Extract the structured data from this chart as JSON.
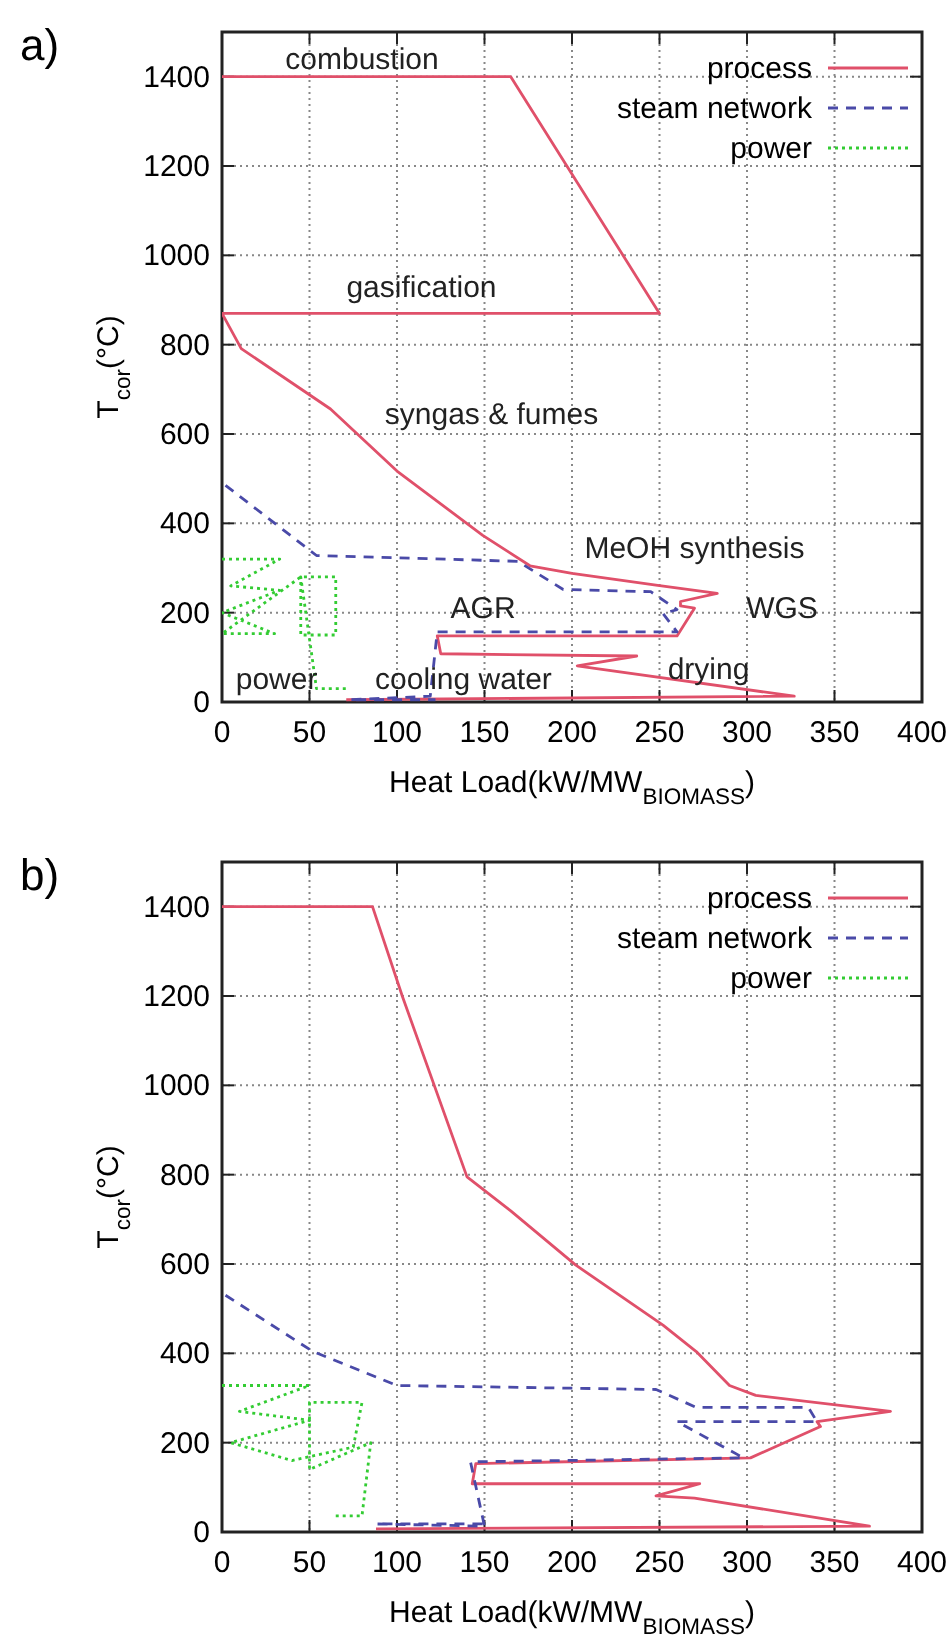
{
  "chart_data": [
    {
      "type": "line",
      "title": "a)",
      "xlabel": "Heat Load(kW/MW$_{BIOMASS}$)",
      "ylabel": "T$_{cor}$(°C)",
      "xlim": [
        0,
        400
      ],
      "ylim": [
        0,
        1500
      ],
      "xticks": [
        0,
        50,
        100,
        150,
        200,
        250,
        300,
        350,
        400
      ],
      "yticks": [
        0,
        200,
        400,
        600,
        800,
        1000,
        1200,
        1400
      ],
      "grid": true,
      "legend": "top right",
      "series": [
        {
          "name": "process",
          "color": "#e0506a",
          "line_style": "solid",
          "x": [
            0,
            165,
            250,
            0,
            11,
            62,
            100,
            149,
            176,
            200,
            249,
            283,
            262,
            262,
            270,
            260,
            123,
            125,
            237,
            203,
            212,
            327,
            71
          ],
          "values": [
            1400,
            1400,
            870,
            870,
            791,
            656,
            517,
            373,
            305,
            288,
            261,
            243,
            225,
            215,
            210,
            148,
            148,
            108,
            103,
            81,
            76,
            13,
            5
          ]
        },
        {
          "name": "steam network",
          "color": "#4a4aa8",
          "line_style": "dashed",
          "x": [
            2,
            54,
            169,
            195,
            245,
            260,
            252,
            260,
            123,
            119,
            73,
            122
          ],
          "values": [
            485,
            328,
            315,
            252,
            247,
            207,
            198,
            157,
            157,
            13,
            5,
            5
          ]
        },
        {
          "name": "power",
          "color": "#33cc33",
          "line_style": "dotted",
          "x": [
            0,
            33,
            5,
            33,
            0,
            30,
            0,
            45,
            65,
            65,
            45,
            45,
            54,
            71
          ],
          "values": [
            320,
            320,
            260,
            250,
            200,
            153,
            153,
            280,
            280,
            150,
            150,
            280,
            30,
            30
          ]
        }
      ],
      "annotations": [
        "combustion",
        "gasification",
        "syngas & fumes",
        "MeOH synthesis",
        "WGS",
        "AGR",
        "drying",
        "power",
        "cooling water"
      ]
    },
    {
      "type": "line",
      "title": "b)",
      "xlabel": "Heat Load(kW/MW$_{BIOMASS}$)",
      "ylabel": "T$_{cor}$(°C)",
      "xlim": [
        0,
        400
      ],
      "ylim": [
        0,
        1500
      ],
      "xticks": [
        0,
        50,
        100,
        150,
        200,
        250,
        300,
        350,
        400
      ],
      "yticks": [
        0,
        200,
        400,
        600,
        800,
        1000,
        1200,
        1400
      ],
      "grid": true,
      "legend": "top right",
      "series": [
        {
          "name": "process",
          "color": "#e0506a",
          "line_style": "solid",
          "x": [
            0,
            86,
            103,
            140,
            165,
            202,
            252,
            271,
            290,
            305,
            382,
            340,
            342,
            302,
            145,
            143,
            273,
            248,
            270,
            370,
            88
          ],
          "values": [
            1400,
            1400,
            1200,
            795,
            719,
            598,
            463,
            404,
            328,
            306,
            270,
            247,
            236,
            166,
            153,
            108,
            108,
            81,
            76,
            13,
            7
          ]
        },
        {
          "name": "steam network",
          "color": "#4a4aa8",
          "line_style": "dashed",
          "x": [
            2,
            52,
            100,
            248,
            271,
            335,
            340,
            260,
            298,
            142,
            150,
            88,
            150
          ],
          "values": [
            530,
            404,
            328,
            319,
            279,
            279,
            247,
            247,
            166,
            157,
            13,
            18,
            18
          ]
        },
        {
          "name": "power",
          "color": "#33cc33",
          "line_style": "dotted",
          "x": [
            0,
            50,
            10,
            50,
            5,
            40,
            75,
            80,
            50,
            50,
            85,
            80,
            65
          ],
          "values": [
            328,
            328,
            270,
            250,
            200,
            160,
            190,
            290,
            290,
            140,
            200,
            36,
            36
          ]
        }
      ]
    }
  ]
}
